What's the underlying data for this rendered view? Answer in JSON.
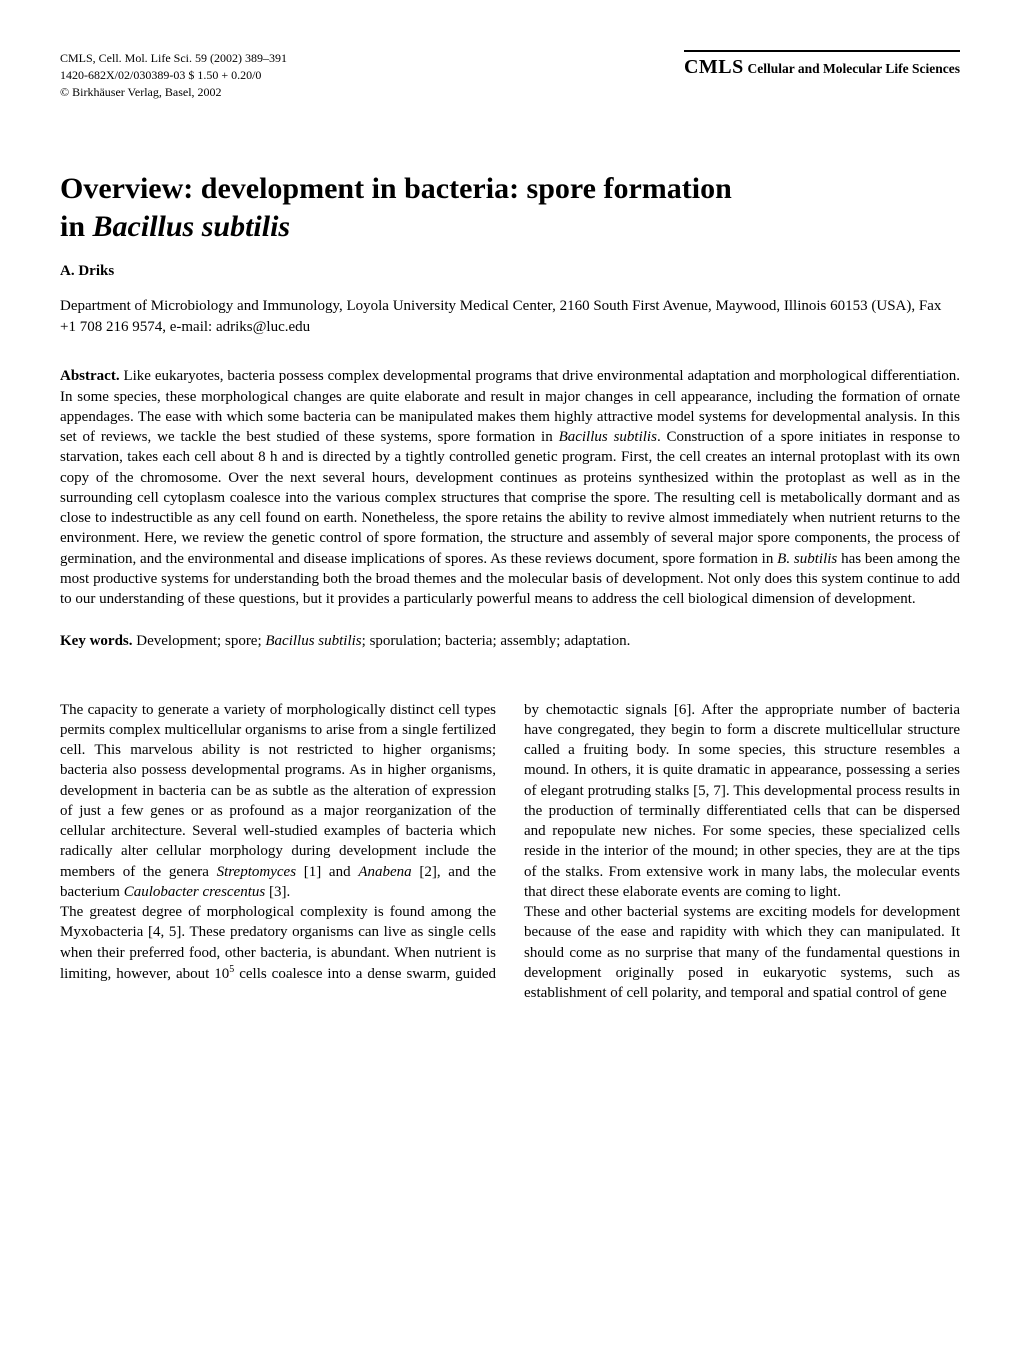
{
  "header": {
    "citation_line1": "CMLS, Cell. Mol. Life Sci. 59 (2002) 389–391",
    "citation_line2": "1420-682X/02/030389-03 $ 1.50 + 0.20/0",
    "citation_line3": "© Birkhäuser Verlag, Basel, 2002",
    "journal_abbrev": "CMLS",
    "journal_full": "Cellular and Molecular Life Sciences"
  },
  "title": {
    "line1": "Overview: development in bacteria: spore formation",
    "line2_prefix": "in ",
    "line2_italic": "Bacillus subtilis"
  },
  "author": "A. Driks",
  "affiliation": "Department of Microbiology and Immunology, Loyola University Medical Center, 2160 South First Avenue, Maywood, Illinois 60153 (USA), Fax +1 708 216 9574, e-mail: adriks@luc.edu",
  "abstract": {
    "label": "Abstract.",
    "text_part1": " Like eukaryotes, bacteria possess complex developmental programs that drive environmental adaptation and morphological differentiation. In some species, these morphological changes are quite elaborate and result in major changes in cell appearance, including the formation of ornate appendages. The ease with which some bacteria can be manipulated makes them highly attractive model systems for developmental analysis. In this set of reviews, we tackle the best studied of these systems, spore formation in ",
    "italic1": "Bacillus subtilis",
    "text_part2": ". Construction of a spore initiates in response to starvation, takes each cell about 8 h and is directed by a tightly controlled genetic program. First, the cell creates an internal protoplast with its own copy of the chromosome. Over the next several hours, development continues as proteins synthesized within the protoplast as well as in the surrounding cell cytoplasm coalesce into the various complex structures that comprise the spore. The resulting cell is metabolically dormant and as close to indestructible as any cell found on earth. Nonetheless, the spore retains the ability to revive almost immediately when nutrient returns to the environment. Here, we review the genetic control of spore formation, the structure and assembly of several major spore components, the process of germination, and the environmental and disease implications of spores. As these reviews document, spore formation in ",
    "italic2": "B. subtilis",
    "text_part3": " has been among the most productive systems for understanding both the broad themes and the molecular basis of development. Not only does this system continue to add to our understanding of these questions, but it provides a particularly powerful means to address the cell biological dimension of development."
  },
  "keywords": {
    "label": "Key words.",
    "text_part1": " Development; spore; ",
    "italic1": "Bacillus subtilis",
    "text_part2": "; sporulation; bacteria; assembly; adaptation."
  },
  "body": {
    "para1_part1": "The capacity to generate a variety of morphologically distinct cell types permits complex multicellular organisms to arise from a single fertilized cell. This marvelous ability is not restricted to higher organisms; bacteria also possess developmental programs. As in higher organisms, development in bacteria can be as subtle as the alteration of expression of just a few genes or as profound as a major reorganization of the cellular architecture. Several well-studied examples of bacteria which radically alter cellular morphology during development include the members of the genera ",
    "para1_italic1": "Streptomyces",
    "para1_part2": " [1] and ",
    "para1_italic2": "Anabena",
    "para1_part3": " [2], and the bacterium ",
    "para1_italic3": "Caulobacter crescentus",
    "para1_part4": " [3].",
    "para2_part1": "The greatest degree of morphological complexity is found among the Myxobacteria [4, 5]. These predatory organisms can live as single cells when their preferred food, other bacteria, is abundant. When nutrient is limiting, however, about 10",
    "para2_sup": "5",
    "para2_part2": " cells coalesce into a dense swarm, guided by chemotactic signals [6]. After the appropriate number of bacteria have congregated, they begin to form a discrete multicellular structure called a fruiting body. In some species, this structure resembles a mound. In others, it is quite dramatic in appearance, possessing a series of elegant protruding stalks [5, 7]. This developmental process results in the production of terminally differentiated cells that can be dispersed and repopulate new niches. For some species, these specialized cells reside in the interior of the mound; in other species, they are at the tips of the stalks. From extensive work in many labs, the molecular events that direct these elaborate events are coming to light.",
    "para3": "These and other bacterial systems are exciting models for development because of the ease and rapidity with which they can manipulated. It should come as no surprise that many of the fundamental questions in development originally posed in eukaryotic systems, such as establishment of cell polarity, and temporal and spatial control of gene"
  }
}
